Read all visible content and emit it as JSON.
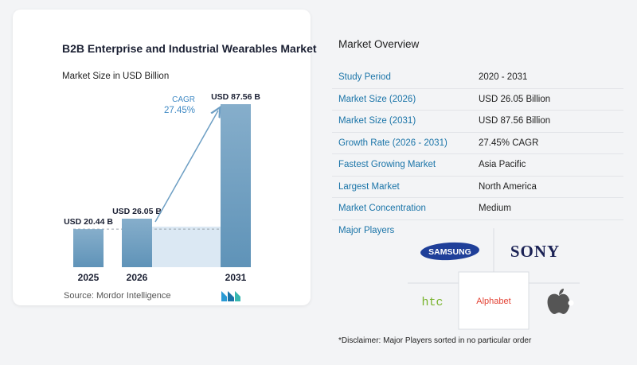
{
  "chart_data": {
    "type": "bar",
    "title": "B2B Enterprise and Industrial Wearables Market",
    "subtitle": "Market Size in USD Billion",
    "categories": [
      "2025",
      "2026",
      "2031"
    ],
    "values": [
      20.44,
      26.05,
      87.56
    ],
    "data_labels": [
      "USD 20.44 B",
      "USD 26.05 B",
      "USD 87.56 B"
    ],
    "cagr_label": "CAGR",
    "cagr_value": "27.45%",
    "source": "Source:  Mordor Intelligence",
    "colors": {
      "bar_top": "#86aecb",
      "bar_bottom": "#5f93b8",
      "band": "#dbe8f3",
      "arrow": "#6e9fc4",
      "cagr": "#3f89c4"
    }
  },
  "overview": {
    "title": "Market Overview",
    "rows": [
      {
        "label": "Study Period",
        "value": "2020 - 2031"
      },
      {
        "label": "Market Size (2026)",
        "value": "USD 26.05 Billion"
      },
      {
        "label": "Market Size (2031)",
        "value": "USD 87.56 Billion"
      },
      {
        "label": "Growth Rate (2026 - 2031)",
        "value": "27.45% CAGR"
      },
      {
        "label": "Fastest Growing Market",
        "value": "Asia Pacific"
      },
      {
        "label": "Largest Market",
        "value": "North America"
      },
      {
        "label": "Market Concentration",
        "value": "Medium"
      }
    ]
  },
  "players": {
    "title": "Major Players",
    "logos": [
      "SAMSUNG",
      "SONY",
      "htc",
      "Alphabet",
      "apple-icon"
    ]
  },
  "disclaimer": "*Disclaimer: Major Players sorted in no particular order"
}
